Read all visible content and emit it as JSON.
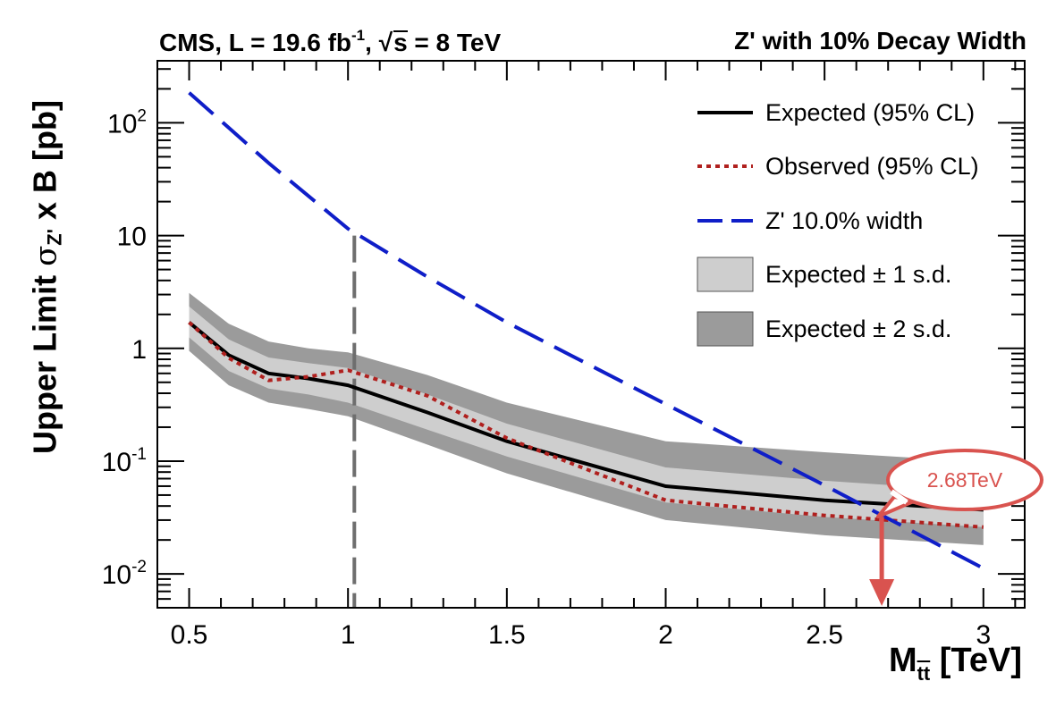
{
  "header": {
    "left_prefix": "CMS, L = 19.6 fb",
    "left_sup": "-1",
    "left_middle": ", ",
    "sqrt_symbol": "√",
    "sqrt_arg": "s",
    "left_suffix": " = 8 TeV",
    "right": "Z' with 10% Decay Width"
  },
  "chart_data": {
    "type": "line",
    "title": "CMS, L = 19.6 fb-1, √s = 8 TeV",
    "subtitle": "Z' with 10% Decay Width",
    "ylabel": {
      "prefix": "Upper Limit ",
      "sigma": "σ",
      "sub": "Z'",
      "suffix": " x B [pb]"
    },
    "xlabel": {
      "main": "M",
      "sub": "tt",
      "suffix": " [TeV]"
    },
    "xlim": [
      0.4,
      3.13
    ],
    "ylim_log10": [
      -2.3,
      2.55
    ],
    "yscale": "log",
    "x_ticks": [
      {
        "value": 0.5,
        "label": "0.5"
      },
      {
        "value": 1,
        "label": "1"
      },
      {
        "value": 1.5,
        "label": "1.5"
      },
      {
        "value": 2,
        "label": "2"
      },
      {
        "value": 2.5,
        "label": "2.5"
      },
      {
        "value": 3,
        "label": "3"
      }
    ],
    "y_ticks": [
      {
        "value": 0.01,
        "base": "10",
        "exp": "-2"
      },
      {
        "value": 0.1,
        "base": "10",
        "exp": "-1"
      },
      {
        "value": 1,
        "base": "1",
        "exp": ""
      },
      {
        "value": 10,
        "base": "10",
        "exp": ""
      },
      {
        "value": 100,
        "base": "10",
        "exp": "2"
      }
    ],
    "x": [
      0.5,
      0.625,
      0.75,
      0.875,
      1.0,
      1.25,
      1.5,
      2.0,
      2.5,
      3.0
    ],
    "series": [
      {
        "name": "Expected (95% CL)",
        "style": "solid",
        "color": "#000000",
        "values": [
          1.7,
          0.87,
          0.6,
          0.54,
          0.47,
          0.27,
          0.15,
          0.06,
          0.045,
          0.037
        ]
      },
      {
        "name": "Observed (95% CL)",
        "style": "dotted",
        "color": "#b0201e",
        "values": [
          1.7,
          0.82,
          0.52,
          0.56,
          0.64,
          0.38,
          0.16,
          0.045,
          0.033,
          0.026
        ]
      },
      {
        "name": "Z' 10.0% width",
        "style": "dashed",
        "color": "#0f1ec8",
        "x": [
          0.5,
          0.75,
          1.0,
          1.25,
          1.5,
          2.0,
          2.5,
          3.0
        ],
        "values": [
          185,
          44,
          11.5,
          4.3,
          1.7,
          0.32,
          0.061,
          0.0112
        ]
      }
    ],
    "bands": [
      {
        "name": "Expected ± 2 s.d.",
        "color": "#9b9b9b",
        "low": [
          0.95,
          0.47,
          0.33,
          0.29,
          0.25,
          0.14,
          0.078,
          0.03,
          0.022,
          0.018
        ],
        "high": [
          3.1,
          1.65,
          1.15,
          1.0,
          0.92,
          0.58,
          0.33,
          0.15,
          0.12,
          0.098
        ]
      },
      {
        "name": "Expected ± 1 s.d.",
        "color": "#cecece",
        "low": [
          1.25,
          0.63,
          0.44,
          0.39,
          0.33,
          0.19,
          0.11,
          0.043,
          0.032,
          0.026
        ],
        "high": [
          2.35,
          1.2,
          0.83,
          0.74,
          0.67,
          0.39,
          0.215,
          0.088,
          0.067,
          0.054
        ]
      }
    ],
    "vertical_marker": {
      "x": 1.02,
      "y_top": 10,
      "style": "dashed",
      "color": "#6e6e6e"
    },
    "annotation": {
      "text": "2.68TeV",
      "x": 2.68,
      "y": 0.031,
      "color": "#d9534f"
    },
    "legend_position": "top-right",
    "legend": [
      {
        "label": "Expected (95% CL)",
        "kind": "solid",
        "color": "#000000"
      },
      {
        "label": "Observed (95% CL)",
        "kind": "dotted",
        "color": "#b0201e"
      },
      {
        "label": "Z' 10.0% width",
        "kind": "dashed",
        "color": "#0f1ec8"
      },
      {
        "label": "Expected ± 1 s.d.",
        "kind": "box",
        "color": "#cecece"
      },
      {
        "label": "Expected ± 2 s.d.",
        "kind": "box",
        "color": "#9b9b9b"
      }
    ]
  }
}
